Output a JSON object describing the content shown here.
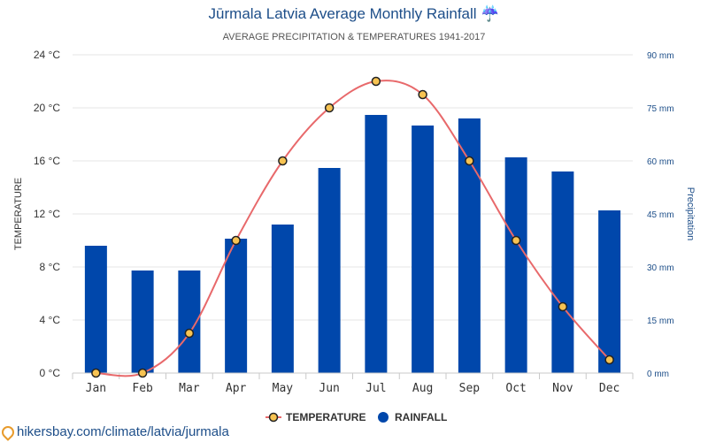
{
  "header": {
    "title": "Jūrmala Latvia Average Monthly Rainfall ☔",
    "subtitle": "AVERAGE PRECIPITATION & TEMPERATURES 1941-2017"
  },
  "footer": {
    "link_text": "hikersbay.com/climate/latvia/jurmala"
  },
  "colors": {
    "bar": "#0047ab",
    "line": "#e8696b",
    "marker_fill": "#f7c352",
    "title": "#1d4e89",
    "axis_right": "#1d4e89"
  },
  "chart_data": {
    "type": "bar",
    "categories": [
      "Jan",
      "Feb",
      "Mar",
      "Apr",
      "May",
      "Jun",
      "Jul",
      "Aug",
      "Sep",
      "Oct",
      "Nov",
      "Dec"
    ],
    "series": [
      {
        "name": "TEMPERATURE",
        "type": "line",
        "axis": "left",
        "values": [
          0,
          0,
          3,
          10,
          16,
          20,
          22,
          21,
          16,
          10,
          5,
          1
        ]
      },
      {
        "name": "RAINFALL",
        "type": "bar",
        "axis": "right",
        "values": [
          36,
          29,
          29,
          38,
          42,
          58,
          73,
          70,
          72,
          61,
          57,
          46
        ]
      }
    ],
    "ylabel": "TEMPERATURE",
    "y2label": "Precipitation",
    "ylim": [
      0,
      24
    ],
    "y2lim": [
      0,
      90
    ],
    "yticks": [
      "0 °C",
      "4 °C",
      "8 °C",
      "12 °C",
      "16 °C",
      "20 °C",
      "24 °C"
    ],
    "y2ticks": [
      "0 mm",
      "15 mm",
      "30 mm",
      "45 mm",
      "60 mm",
      "75 mm",
      "90 mm"
    ],
    "legend": {
      "position": "bottom",
      "items": [
        "TEMPERATURE",
        "RAINFALL"
      ]
    },
    "grid": true
  }
}
